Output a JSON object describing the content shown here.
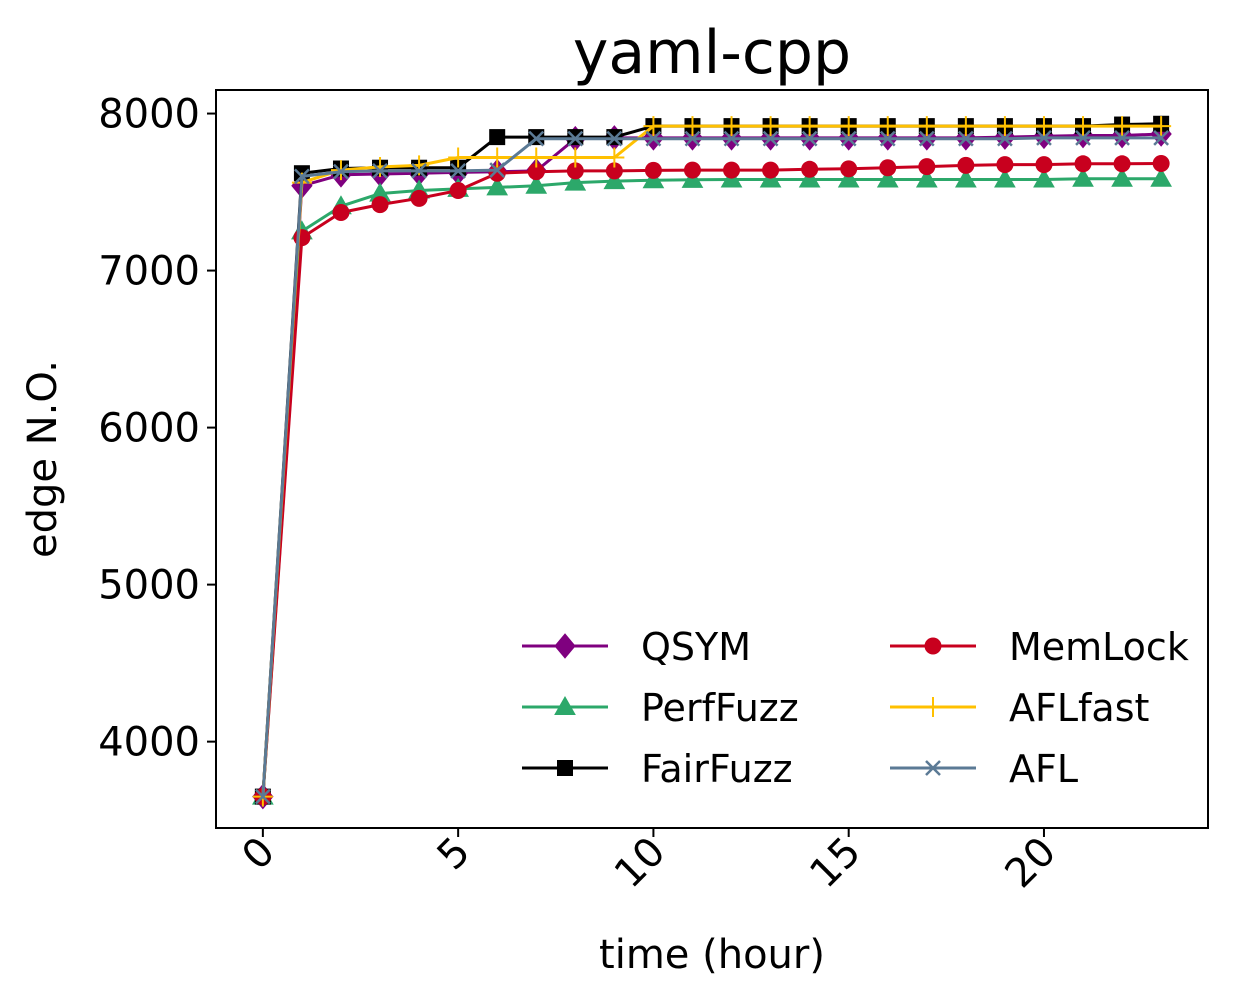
{
  "chart_data": {
    "type": "line",
    "title": "yaml-cpp",
    "xlabel": "time (hour)",
    "ylabel": "edge N.O.",
    "xlim": [
      -1.2,
      24.2
    ],
    "ylim": [
      3450,
      8150
    ],
    "xticks": [
      0,
      5,
      10,
      15,
      20
    ],
    "xtick_labels": [
      "0",
      "5",
      "10",
      "15",
      "20"
    ],
    "xtick_rotation": 45,
    "yticks": [
      4000,
      5000,
      6000,
      7000,
      8000
    ],
    "ytick_labels": [
      "4000",
      "5000",
      "6000",
      "7000",
      "8000"
    ],
    "grid": false,
    "legend": {
      "location": "lower-right",
      "columns": 2,
      "order": [
        "QSYM",
        "MemLock",
        "PerfFuzz",
        "AFLfast",
        "FairFuzz",
        "AFL"
      ]
    },
    "x": [
      0,
      1,
      2,
      3,
      4,
      5,
      6,
      7,
      8,
      9,
      10,
      11,
      12,
      13,
      14,
      15,
      16,
      17,
      18,
      19,
      20,
      21,
      22,
      23
    ],
    "series": [
      {
        "name": "QSYM",
        "color": "#7f007f",
        "marker": "diamond",
        "values": [
          3650,
          7540,
          7610,
          7615,
          7620,
          7625,
          7630,
          7635,
          7840,
          7845,
          7845,
          7845,
          7845,
          7845,
          7845,
          7845,
          7845,
          7845,
          7845,
          7850,
          7855,
          7860,
          7860,
          7870
        ]
      },
      {
        "name": "PerfFuzz",
        "color": "#2ca86a",
        "marker": "triangle",
        "values": [
          3650,
          7250,
          7410,
          7490,
          7510,
          7520,
          7530,
          7540,
          7560,
          7570,
          7575,
          7578,
          7580,
          7580,
          7580,
          7580,
          7580,
          7580,
          7580,
          7580,
          7580,
          7585,
          7585,
          7585
        ]
      },
      {
        "name": "FairFuzz",
        "color": "#000000",
        "marker": "square",
        "values": [
          3650,
          7620,
          7650,
          7655,
          7655,
          7655,
          7850,
          7850,
          7850,
          7850,
          7920,
          7920,
          7920,
          7920,
          7920,
          7920,
          7920,
          7920,
          7920,
          7920,
          7920,
          7920,
          7930,
          7935
        ]
      },
      {
        "name": "MemLock",
        "color": "#c8001e",
        "marker": "circle",
        "values": [
          3650,
          7210,
          7370,
          7420,
          7460,
          7510,
          7620,
          7630,
          7635,
          7635,
          7638,
          7640,
          7640,
          7640,
          7645,
          7648,
          7655,
          7662,
          7670,
          7675,
          7675,
          7680,
          7680,
          7682
        ]
      },
      {
        "name": "AFLfast",
        "color": "#ffc000",
        "marker": "plus",
        "values": [
          3650,
          7560,
          7640,
          7660,
          7670,
          7720,
          7720,
          7720,
          7720,
          7720,
          7920,
          7920,
          7920,
          7920,
          7920,
          7920,
          7920,
          7920,
          7920,
          7920,
          7920,
          7920,
          7920,
          7920
        ]
      },
      {
        "name": "AFL",
        "color": "#5b7a95",
        "marker": "x",
        "values": [
          3650,
          7600,
          7630,
          7635,
          7635,
          7635,
          7640,
          7840,
          7840,
          7840,
          7840,
          7840,
          7840,
          7840,
          7840,
          7840,
          7840,
          7840,
          7840,
          7840,
          7845,
          7845,
          7845,
          7845
        ]
      }
    ]
  }
}
